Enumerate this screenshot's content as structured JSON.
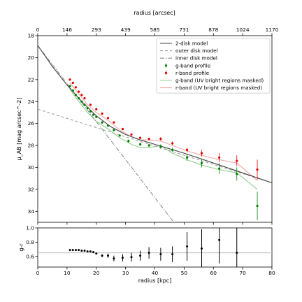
{
  "chart_data": [
    {
      "type": "scatter",
      "panel": "main",
      "top_xlabel": "radius [arcsec]",
      "top_xticks": [
        "0",
        "146",
        "293",
        "439",
        "585",
        "731",
        "878",
        "1024",
        "1170"
      ],
      "ylabel": "μ_AB [mag arcsec^-2]",
      "xlim": [
        0,
        80
      ],
      "ylim": [
        35,
        18
      ],
      "yticks": [
        18,
        20,
        22,
        24,
        26,
        28,
        30,
        32,
        34
      ],
      "xticks": [
        0,
        10,
        20,
        30,
        40,
        50,
        60,
        70,
        80
      ],
      "legend_position": "top-right",
      "legend": {
        "two_disk": "2-disk model",
        "outer_disk": "outer disk model",
        "inner_disk": "inner disk model",
        "g_profile": "g-band profile",
        "r_profile": "r-band profile",
        "g_masked": "g-band (UV bright regions masked)",
        "r_masked": "r-band (UV bright regions masked)"
      },
      "models": {
        "two_disk": {
          "x": [
            0,
            5,
            10,
            15,
            20,
            25,
            30,
            35,
            40,
            50,
            60,
            70,
            80
          ],
          "y": [
            18.9,
            20.8,
            22.5,
            24.0,
            25.3,
            26.3,
            27.0,
            27.5,
            27.9,
            28.7,
            29.6,
            30.5,
            31.4
          ]
        },
        "outer_disk": {
          "x": [
            0,
            80
          ],
          "y": [
            24.7,
            31.4
          ]
        },
        "inner_disk": {
          "x": [
            0,
            46.5
          ],
          "y": [
            18.9,
            35.0
          ]
        }
      },
      "g_profile": {
        "x": [
          11,
          12,
          13,
          14,
          15,
          16,
          17,
          18,
          19,
          20,
          22,
          24,
          26,
          28,
          31,
          35,
          38,
          42,
          46,
          51,
          56,
          62,
          68,
          75
        ],
        "y": [
          22.6,
          23.0,
          23.4,
          23.7,
          24.0,
          24.3,
          24.6,
          24.9,
          25.2,
          25.4,
          25.9,
          26.2,
          26.6,
          27.1,
          27.6,
          27.9,
          28.0,
          28.1,
          28.4,
          29.1,
          29.6,
          30.1,
          30.6,
          33.5
        ],
        "err": [
          0.1,
          0.1,
          0.1,
          0.1,
          0.1,
          0.1,
          0.1,
          0.1,
          0.1,
          0.1,
          0.1,
          0.1,
          0.1,
          0.1,
          0.15,
          0.15,
          0.15,
          0.2,
          0.2,
          0.3,
          0.4,
          0.5,
          0.6,
          1.3
        ]
      },
      "r_profile": {
        "x": [
          11,
          12,
          13,
          14,
          15,
          16,
          18,
          20,
          22,
          24,
          26,
          29,
          32,
          35,
          38,
          42,
          46,
          51,
          56,
          62,
          68,
          75
        ],
        "y": [
          22.0,
          22.3,
          22.7,
          23.1,
          23.4,
          23.7,
          24.3,
          24.7,
          25.1,
          25.5,
          25.9,
          26.5,
          27.0,
          27.3,
          27.4,
          27.4,
          27.8,
          28.4,
          28.7,
          29.1,
          29.4,
          30.2
        ],
        "err": [
          0.1,
          0.1,
          0.1,
          0.1,
          0.1,
          0.1,
          0.1,
          0.1,
          0.1,
          0.1,
          0.1,
          0.1,
          0.1,
          0.1,
          0.1,
          0.15,
          0.15,
          0.2,
          0.3,
          0.4,
          0.5,
          0.9
        ]
      },
      "g_masked": {
        "x": [
          11,
          14,
          17,
          20,
          24,
          28,
          32,
          35,
          38,
          42,
          46,
          51,
          56,
          62,
          68,
          75
        ],
        "y": [
          22.9,
          24.0,
          25.0,
          25.8,
          26.5,
          27.3,
          27.9,
          28.2,
          28.2,
          28.0,
          28.7,
          29.3,
          29.8,
          30.2,
          30.5,
          32.0
        ]
      },
      "r_masked": {
        "x": [
          11,
          14,
          17,
          20,
          24,
          28,
          32,
          35,
          38,
          42,
          46,
          51,
          56,
          62,
          68,
          75
        ],
        "y": [
          22.3,
          23.3,
          24.3,
          25.0,
          25.7,
          26.6,
          27.2,
          27.5,
          27.5,
          27.6,
          28.0,
          28.5,
          28.9,
          29.3,
          29.6,
          31.2
        ]
      }
    },
    {
      "type": "scatter",
      "panel": "color",
      "xlabel": "radius [kpc]",
      "ylabel": "g-r",
      "xlim": [
        0,
        80
      ],
      "ylim": [
        0.45,
        1.0
      ],
      "yticks": [
        0.6,
        0.8,
        1.0
      ],
      "xticks": [
        0,
        10,
        20,
        30,
        40,
        50,
        60,
        70,
        80
      ],
      "reference_line": 0.65,
      "points": {
        "x": [
          11,
          12,
          13,
          14,
          15,
          16,
          17,
          18,
          19,
          20,
          22,
          24,
          26,
          29,
          32,
          35,
          38,
          42,
          46,
          51,
          56,
          62,
          68
        ],
        "y": [
          0.69,
          0.69,
          0.69,
          0.69,
          0.68,
          0.68,
          0.67,
          0.67,
          0.66,
          0.64,
          0.61,
          0.61,
          0.57,
          0.58,
          0.59,
          0.61,
          0.65,
          0.63,
          0.63,
          0.74,
          0.71,
          0.83,
          0.65
        ],
        "err": [
          0.01,
          0.01,
          0.01,
          0.01,
          0.01,
          0.01,
          0.01,
          0.01,
          0.01,
          0.01,
          0.02,
          0.03,
          0.04,
          0.05,
          0.06,
          0.07,
          0.08,
          0.09,
          0.11,
          0.2,
          0.27,
          0.33,
          0.4
        ]
      }
    }
  ],
  "tick_labels": {
    "x": [
      "0",
      "10",
      "20",
      "30",
      "40",
      "50",
      "60",
      "70",
      "80"
    ],
    "main_y": [
      "18",
      "20",
      "22",
      "24",
      "26",
      "28",
      "30",
      "32",
      "34"
    ],
    "color_y": [
      "0.6",
      "0.8",
      "1.0"
    ]
  },
  "colors": {
    "two_disk": "#444444",
    "outer_disk": "#999999",
    "inner_disk": "#888888",
    "g_profile": "#008000",
    "r_profile": "#e00000",
    "g_masked": "#90d090",
    "r_masked": "#f5a5a5",
    "color_points": "#000000",
    "reference_line": "#bbbbbb"
  }
}
